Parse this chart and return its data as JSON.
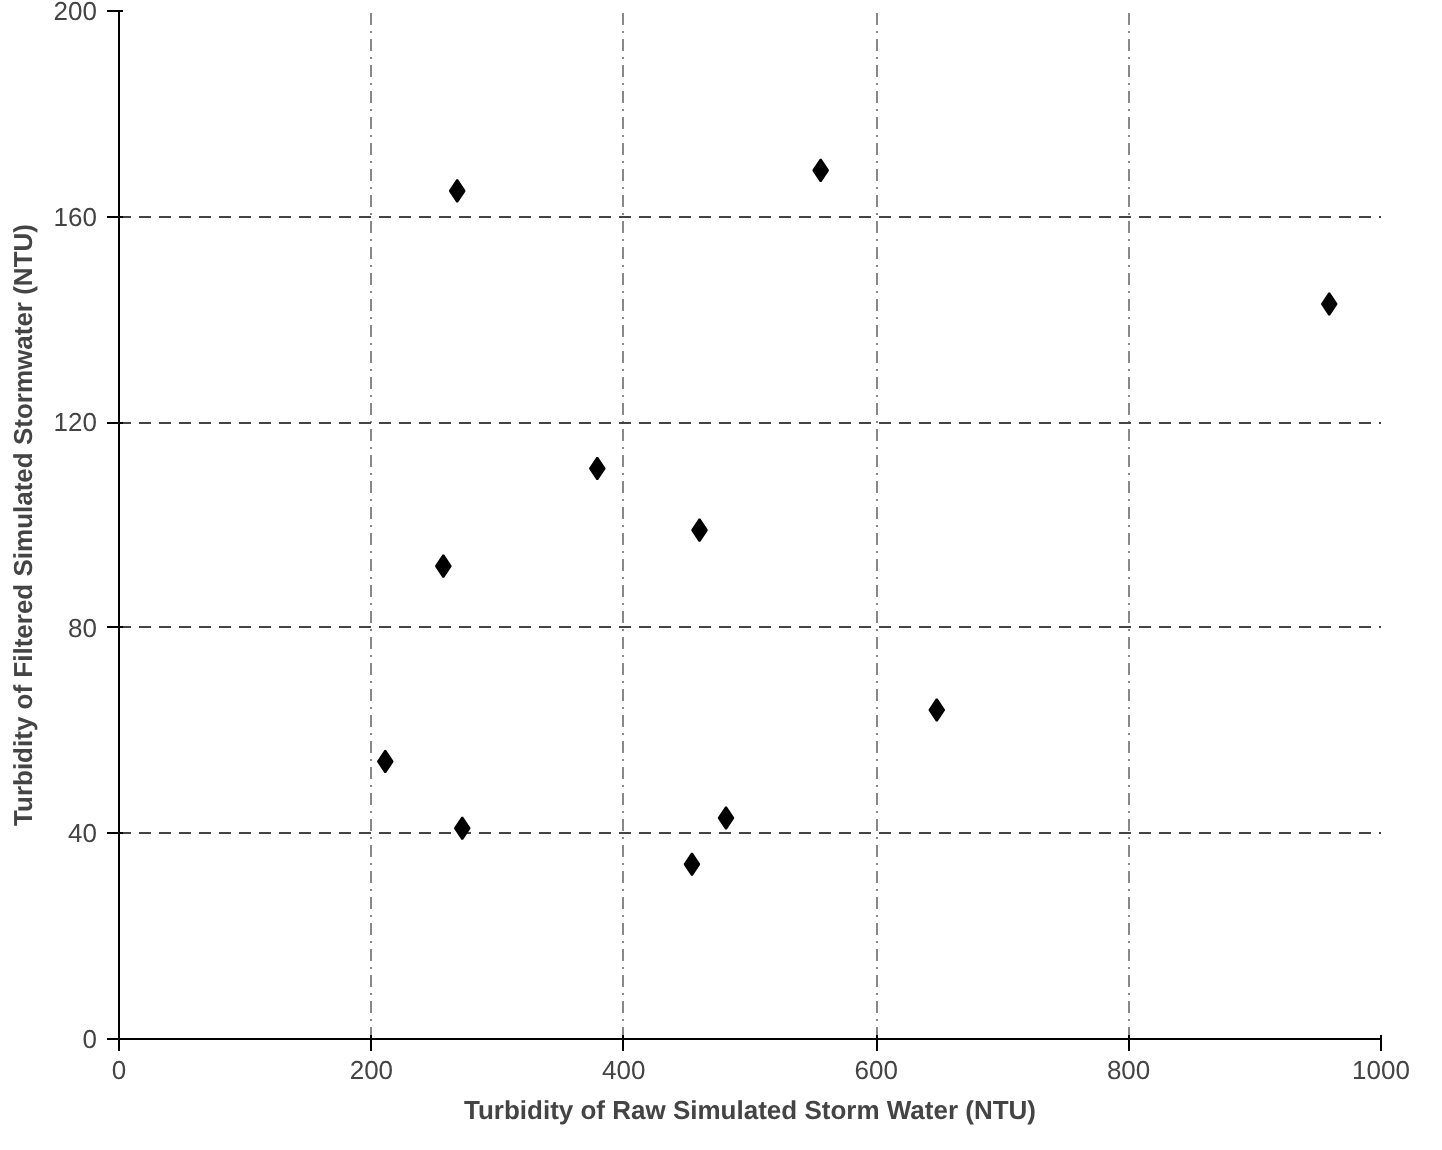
{
  "chart_data": {
    "type": "scatter",
    "xlabel": "Turbidity of Raw Simulated Storm Water (NTU)",
    "ylabel": "Turbidity of Filtered Simulated Stormwater (NTU)",
    "x": [
      268,
      556,
      959,
      379,
      460,
      257,
      648,
      211,
      272,
      481,
      454
    ],
    "series": [
      {
        "color": "#000000",
        "values": [
          165,
          169,
          143,
          111,
          99,
          92,
          64,
          54,
          41,
          43,
          34
        ]
      }
    ],
    "xlim": [
      0,
      1000
    ],
    "ylim": [
      0,
      200
    ],
    "xticks": [
      0,
      200,
      400,
      600,
      800,
      1000
    ],
    "yticks": [
      0,
      40,
      80,
      120,
      160,
      200
    ],
    "grid": true,
    "marker": "diamond"
  }
}
